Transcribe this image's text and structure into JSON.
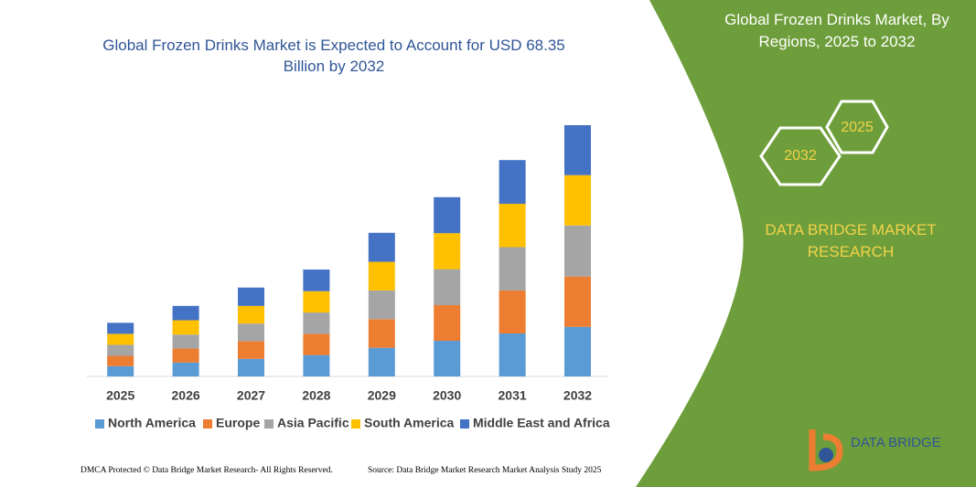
{
  "chart_data": {
    "type": "bar",
    "stacked": true,
    "title": "Global Frozen Drinks Market is Expected to Account for USD 68.35 Billion by 2032",
    "categories": [
      "2025",
      "2026",
      "2027",
      "2028",
      "2029",
      "2030",
      "2031",
      "2032"
    ],
    "series": [
      {
        "name": "North America",
        "color": "#5b9bd5",
        "values": [
          2.8,
          3.8,
          4.8,
          5.8,
          7.8,
          9.7,
          11.7,
          13.5
        ]
      },
      {
        "name": "Europe",
        "color": "#ed7d31",
        "values": [
          2.8,
          3.8,
          4.8,
          5.8,
          7.8,
          9.7,
          11.7,
          13.7
        ]
      },
      {
        "name": "Asia Pacific",
        "color": "#a5a5a5",
        "values": [
          3.0,
          3.8,
          4.8,
          5.8,
          7.8,
          9.8,
          11.8,
          13.9
        ]
      },
      {
        "name": "South America",
        "color": "#ffc000",
        "values": [
          3.0,
          3.9,
          4.8,
          5.8,
          7.8,
          9.8,
          11.8,
          13.7
        ]
      },
      {
        "name": "Middle East and Africa",
        "color": "#4472c4",
        "values": [
          3.0,
          3.9,
          5.0,
          5.9,
          7.9,
          9.8,
          11.9,
          13.6
        ]
      }
    ],
    "legend": "bottom"
  },
  "right_panel": {
    "title": "Global Frozen Drinks Market, By Regions, 2025 to 2032",
    "hex_labels": [
      "2025",
      "2032"
    ],
    "brand": "DATA BRIDGE MARKET RESEARCH"
  },
  "logo": "DATA BRIDGE",
  "footer": {
    "dmca": "DMCA Protected © Data Bridge Market Research- All Rights Reserved.",
    "source": "Source: Data Bridge Market Research Market Analysis Study 2025"
  }
}
